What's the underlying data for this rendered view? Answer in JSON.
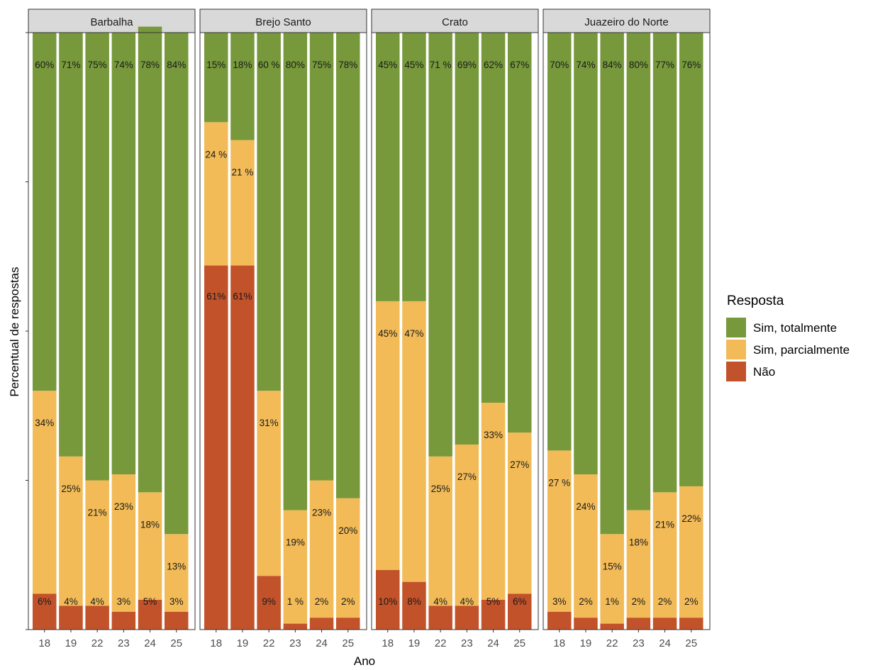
{
  "chart_data": {
    "type": "bar",
    "stacked": true,
    "facets": [
      "Barbalha",
      "Brejo Santo",
      "Crato",
      "Juazeiro do Norte"
    ],
    "categories": [
      "18",
      "19",
      "22",
      "23",
      "24",
      "25"
    ],
    "xlabel": "Ano",
    "ylabel": "Percentual de respostas",
    "ylim": [
      0,
      100
    ],
    "legend": {
      "title": "Resposta",
      "position": "right",
      "entries": [
        "Sim, totalmente",
        "Sim, parcialmente",
        "Não"
      ]
    },
    "colors": {
      "Sim, totalmente": "#77993b",
      "Sim, parcialmente": "#f2bb57",
      "Não": "#c2522a",
      "strip_background": "#d9d9d9",
      "panel_border": "#333333"
    },
    "panels": [
      {
        "facet": "Barbalha",
        "series": [
          {
            "name": "Não",
            "values": [
              6,
              4,
              4,
              3,
              5,
              3
            ],
            "labels": [
              "6%",
              "4%",
              "4%",
              "3%",
              "5%",
              "3%"
            ]
          },
          {
            "name": "Sim, parcialmente",
            "values": [
              34,
              25,
              21,
              23,
              18,
              13
            ],
            "labels": [
              "34%",
              "25%",
              "21%",
              "23%",
              "18%",
              "13%"
            ]
          },
          {
            "name": "Sim, totalmente",
            "values": [
              60,
              71,
              75,
              74,
              78,
              84
            ],
            "labels": [
              "60%",
              "71%",
              "75%",
              "74%",
              "78%",
              "84%"
            ]
          }
        ]
      },
      {
        "facet": "Brejo Santo",
        "series": [
          {
            "name": "Não",
            "values": [
              61,
              61,
              9,
              1,
              2,
              2
            ],
            "labels": [
              "61%",
              "61%",
              "9%",
              "1 %",
              "2%",
              "2%"
            ]
          },
          {
            "name": "Sim, parcialmente",
            "values": [
              24,
              21,
              31,
              19,
              23,
              20
            ],
            "labels": [
              "24 %",
              "21 %",
              "31%",
              "19%",
              "23%",
              "20%"
            ]
          },
          {
            "name": "Sim, totalmente",
            "values": [
              15,
              18,
              60,
              80,
              75,
              78
            ],
            "labels": [
              "15%",
              "18%",
              "60 %",
              "80%",
              "75%",
              "78%"
            ]
          }
        ]
      },
      {
        "facet": "Crato",
        "series": [
          {
            "name": "Não",
            "values": [
              10,
              8,
              4,
              4,
              5,
              6
            ],
            "labels": [
              "10%",
              "8%",
              "4%",
              "4%",
              "5%",
              "6%"
            ]
          },
          {
            "name": "Sim, parcialmente",
            "values": [
              45,
              47,
              25,
              27,
              33,
              27
            ],
            "labels": [
              "45%",
              "47%",
              "25%",
              "27%",
              "33%",
              "27%"
            ]
          },
          {
            "name": "Sim, totalmente",
            "values": [
              45,
              45,
              71,
              69,
              62,
              67
            ],
            "labels": [
              "45%",
              "45%",
              "71 %",
              "69%",
              "62%",
              "67%"
            ]
          }
        ]
      },
      {
        "facet": "Juazeiro do Norte",
        "series": [
          {
            "name": "Não",
            "values": [
              3,
              2,
              1,
              2,
              2,
              2
            ],
            "labels": [
              "3%",
              "2%",
              "1%",
              "2%",
              "2%",
              "2%"
            ]
          },
          {
            "name": "Sim, parcialmente",
            "values": [
              27,
              24,
              15,
              18,
              21,
              22
            ],
            "labels": [
              "27 %",
              "24%",
              "15%",
              "18%",
              "21%",
              "22%"
            ]
          },
          {
            "name": "Sim, totalmente",
            "values": [
              70,
              74,
              84,
              80,
              77,
              76
            ],
            "labels": [
              "70%",
              "74%",
              "84%",
              "80%",
              "77%",
              "76%"
            ]
          }
        ]
      }
    ]
  }
}
